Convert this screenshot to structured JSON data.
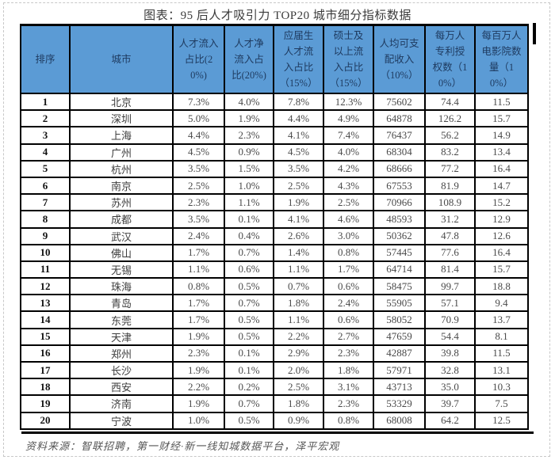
{
  "title": "图表：95 后人才吸引力 TOP20 城市细分指标数据",
  "colors": {
    "header_bg": "#5b9bd5",
    "header_text": "#1e3a5f",
    "border": "#000000",
    "title_text": "#3a3a3a",
    "value_text": "#4a4a4a",
    "source_text": "#565656"
  },
  "chart_data": {
    "type": "table",
    "title": "图表：95 后人才吸引力 TOP20 城市细分指标数据",
    "columns": [
      "排序",
      "城市",
      "人才流入占比(20%)",
      "人才净流入占比(20%)",
      "应届生人才流入占比（15%）",
      "硕士及以上流入占比（15%）",
      "人均可支配收入（10%）",
      "每万人专利授权数（10%）",
      "每百万人电影院数量（10%）"
    ],
    "rows": [
      [
        "1",
        "北京",
        "7.3%",
        "4.0%",
        "7.8%",
        "12.3%",
        "75602",
        "74.4",
        "11.5"
      ],
      [
        "2",
        "深圳",
        "5.0%",
        "1.9%",
        "4.4%",
        "4.9%",
        "64878",
        "126.2",
        "15.7"
      ],
      [
        "3",
        "上海",
        "4.4%",
        "2.3%",
        "4.1%",
        "7.4%",
        "76437",
        "56.2",
        "14.9"
      ],
      [
        "4",
        "广州",
        "4.5%",
        "0.9%",
        "4.5%",
        "4.0%",
        "68304",
        "83.2",
        "13.4"
      ],
      [
        "5",
        "杭州",
        "3.5%",
        "1.5%",
        "3.5%",
        "4.2%",
        "68666",
        "77.2",
        "16.4"
      ],
      [
        "6",
        "南京",
        "2.5%",
        "1.0%",
        "2.5%",
        "4.3%",
        "67553",
        "81.9",
        "14.7"
      ],
      [
        "7",
        "苏州",
        "2.3%",
        "1.1%",
        "1.9%",
        "2.5%",
        "70966",
        "108.9",
        "15.2"
      ],
      [
        "8",
        "成都",
        "3.5%",
        "0.1%",
        "4.1%",
        "4.6%",
        "48593",
        "31.2",
        "12.9"
      ],
      [
        "9",
        "武汉",
        "2.4%",
        "0.4%",
        "2.6%",
        "3.0%",
        "50362",
        "47.8",
        "12.6"
      ],
      [
        "10",
        "佛山",
        "1.7%",
        "0.7%",
        "1.4%",
        "0.8%",
        "57445",
        "77.6",
        "16.4"
      ],
      [
        "11",
        "无锡",
        "1.1%",
        "0.6%",
        "1.1%",
        "1.7%",
        "64714",
        "81.4",
        "15.7"
      ],
      [
        "12",
        "珠海",
        "0.8%",
        "0.5%",
        "0.7%",
        "0.6%",
        "58475",
        "99.7",
        "18.8"
      ],
      [
        "13",
        "青岛",
        "1.7%",
        "0.7%",
        "1.8%",
        "2.4%",
        "55905",
        "57.1",
        "9.4"
      ],
      [
        "14",
        "东莞",
        "1.7%",
        "0.5%",
        "1.1%",
        "0.6%",
        "58052",
        "70.9",
        "13.7"
      ],
      [
        "15",
        "天津",
        "1.9%",
        "0.5%",
        "2.2%",
        "2.7%",
        "47659",
        "54.4",
        "8.1"
      ],
      [
        "16",
        "郑州",
        "2.3%",
        "0.1%",
        "2.9%",
        "2.3%",
        "42887",
        "39.8",
        "11.5"
      ],
      [
        "17",
        "长沙",
        "1.9%",
        "0.1%",
        "2.0%",
        "1.8%",
        "57971",
        "32.8",
        "13.1"
      ],
      [
        "18",
        "西安",
        "2.2%",
        "0.2%",
        "2.5%",
        "3.1%",
        "43713",
        "35.0",
        "10.3"
      ],
      [
        "19",
        "济南",
        "1.9%",
        "0.7%",
        "1.8%",
        "2.3%",
        "53329",
        "39.7",
        "7.5"
      ],
      [
        "20",
        "宁波",
        "1.0%",
        "0.5%",
        "0.9%",
        "0.8%",
        "68008",
        "64.2",
        "12.5"
      ]
    ],
    "source_note": "资料来源：智联招聘，第一财经·新一线知城数据平台，泽平宏观",
    "layout": {
      "grid": true,
      "header_position": "top"
    }
  }
}
